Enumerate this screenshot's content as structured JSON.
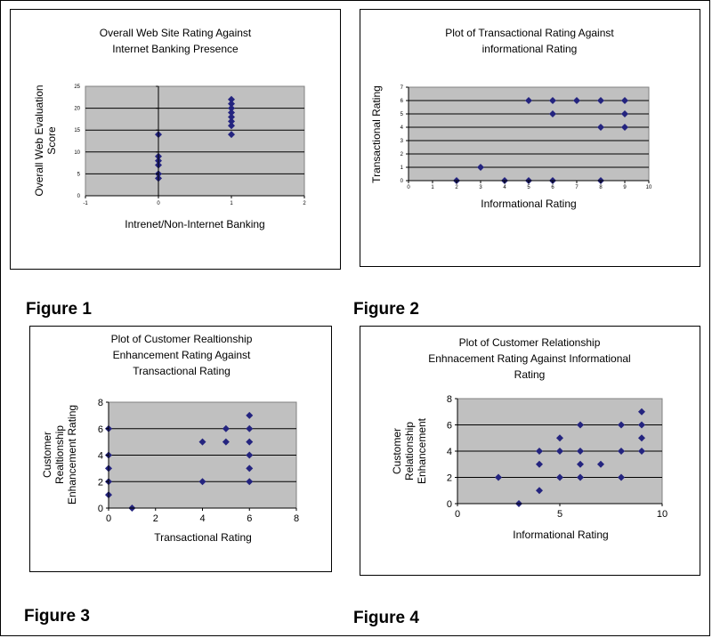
{
  "figure_labels": [
    "Figure 1",
    "Figure 2",
    "Figure 3",
    "Figure 4"
  ],
  "colors": {
    "plot_bg": "#c0c0c0",
    "marker": "#24247f",
    "gridline": "#000000"
  },
  "chart_data": [
    {
      "type": "scatter",
      "title_lines": [
        "Overall  Web Site Rating Against",
        "Internet Banking Presence"
      ],
      "xlabel": "Intrenet/Non-Internet Banking",
      "ylabel_lines": [
        "Overall Web Evaluation",
        "Score"
      ],
      "xlim": [
        -1,
        2
      ],
      "ylim": [
        0,
        25
      ],
      "xticks": [
        -1,
        0,
        1,
        2
      ],
      "yticks": [
        0,
        5,
        10,
        15,
        20,
        25
      ],
      "grid": "horizontal",
      "points": [
        [
          0,
          4
        ],
        [
          0,
          5
        ],
        [
          0,
          7
        ],
        [
          0,
          8
        ],
        [
          0,
          9
        ],
        [
          0,
          14
        ],
        [
          1,
          14
        ],
        [
          1,
          16
        ],
        [
          1,
          17
        ],
        [
          1,
          18
        ],
        [
          1,
          19
        ],
        [
          1,
          20
        ],
        [
          1,
          21
        ],
        [
          1,
          22
        ]
      ]
    },
    {
      "type": "scatter",
      "title_lines": [
        "Plot of Transactional Rating Against",
        "informational Rating"
      ],
      "xlabel": "Informational Rating",
      "ylabel_lines": [
        "Transactional Rating"
      ],
      "xlim": [
        0,
        10
      ],
      "ylim": [
        0,
        7
      ],
      "xticks": [
        0,
        1,
        2,
        3,
        4,
        5,
        6,
        7,
        8,
        9,
        10
      ],
      "yticks": [
        0,
        1,
        2,
        3,
        4,
        5,
        6,
        7
      ],
      "grid": "horizontal",
      "points": [
        [
          2,
          0
        ],
        [
          3,
          1
        ],
        [
          4,
          0
        ],
        [
          5,
          0
        ],
        [
          5,
          6
        ],
        [
          6,
          0
        ],
        [
          6,
          5
        ],
        [
          6,
          6
        ],
        [
          7,
          6
        ],
        [
          8,
          0
        ],
        [
          8,
          4
        ],
        [
          8,
          6
        ],
        [
          9,
          4
        ],
        [
          9,
          5
        ],
        [
          9,
          6
        ]
      ]
    },
    {
      "type": "scatter",
      "title_lines": [
        "Plot of Customer Realtionship",
        "Enhancement Rating Against",
        "Transactional Rating"
      ],
      "xlabel": "Transactional Rating",
      "ylabel_lines": [
        "Customer",
        "Realtionship",
        "Enhancement Rating"
      ],
      "xlim": [
        0,
        8
      ],
      "ylim": [
        0,
        8
      ],
      "xticks": [
        0,
        2,
        4,
        6,
        8
      ],
      "yticks": [
        0,
        2,
        4,
        6,
        8
      ],
      "grid": "horizontal",
      "points": [
        [
          0,
          1
        ],
        [
          0,
          2
        ],
        [
          0,
          3
        ],
        [
          0,
          4
        ],
        [
          0,
          6
        ],
        [
          1,
          0
        ],
        [
          4,
          2
        ],
        [
          4,
          5
        ],
        [
          5,
          5
        ],
        [
          5,
          6
        ],
        [
          6,
          2
        ],
        [
          6,
          3
        ],
        [
          6,
          4
        ],
        [
          6,
          5
        ],
        [
          6,
          6
        ],
        [
          6,
          7
        ]
      ]
    },
    {
      "type": "scatter",
      "title_lines": [
        "Plot of Customer Relationship",
        "Enhnacement Rating Against Informational",
        "Rating"
      ],
      "xlabel": "Informational Rating",
      "ylabel_lines": [
        "Customer",
        "Relationship",
        "Enhancement"
      ],
      "xlim": [
        0,
        10
      ],
      "ylim": [
        0,
        8
      ],
      "xticks": [
        0,
        5,
        10
      ],
      "yticks": [
        0,
        2,
        4,
        6,
        8
      ],
      "grid": "horizontal",
      "points": [
        [
          2,
          2
        ],
        [
          3,
          0
        ],
        [
          4,
          1
        ],
        [
          4,
          3
        ],
        [
          4,
          4
        ],
        [
          5,
          2
        ],
        [
          5,
          4
        ],
        [
          5,
          5
        ],
        [
          6,
          2
        ],
        [
          6,
          3
        ],
        [
          6,
          4
        ],
        [
          6,
          6
        ],
        [
          7,
          3
        ],
        [
          8,
          2
        ],
        [
          8,
          4
        ],
        [
          8,
          6
        ],
        [
          9,
          4
        ],
        [
          9,
          5
        ],
        [
          9,
          6
        ],
        [
          9,
          7
        ]
      ]
    }
  ]
}
